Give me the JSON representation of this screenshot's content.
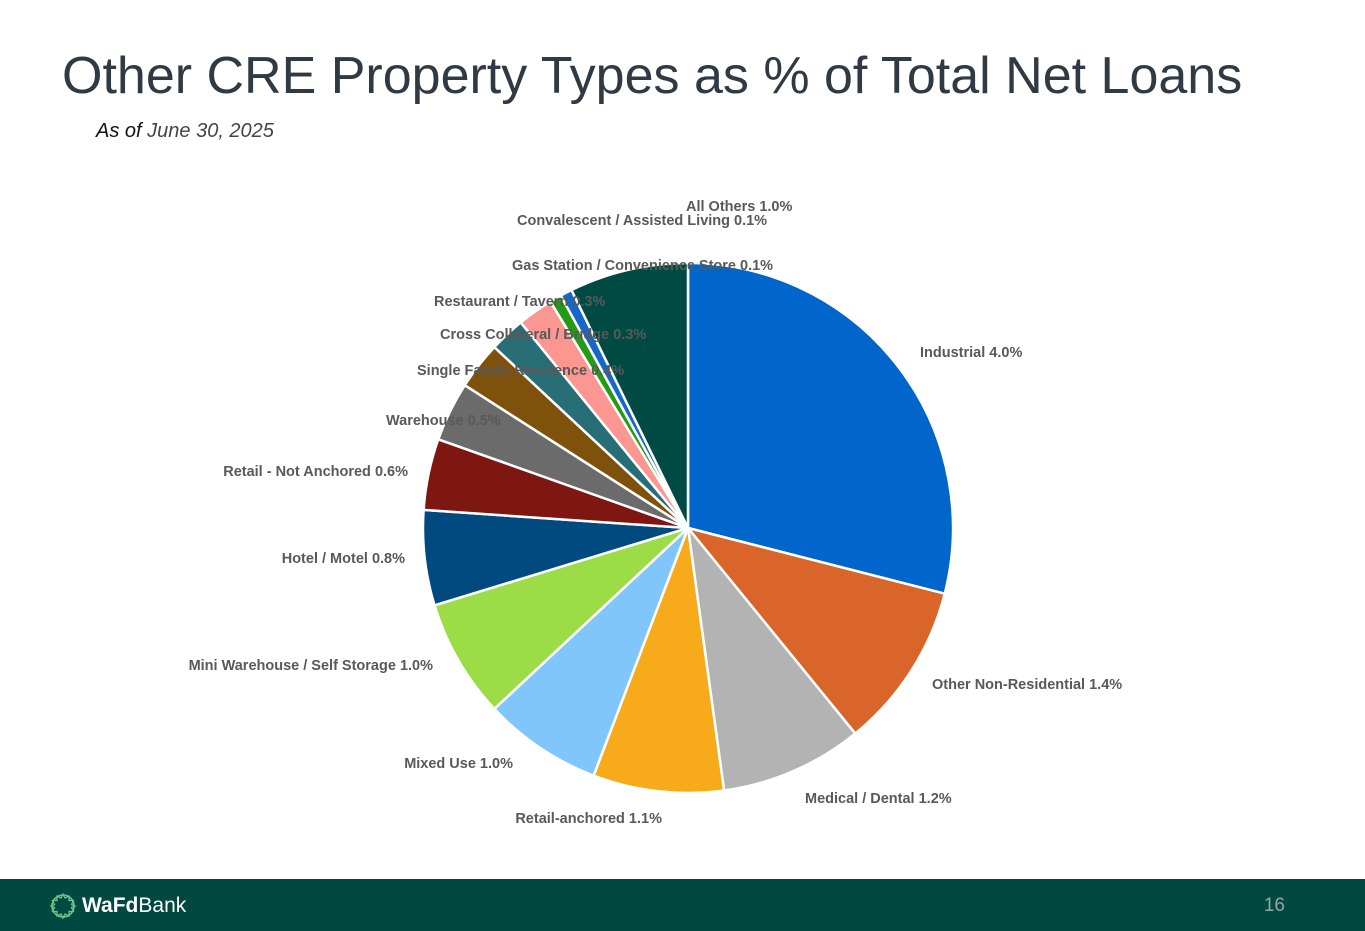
{
  "header": {
    "title": "Other CRE Property Types as % of Total Net Loans",
    "subtitle_prefix": "As of",
    "subtitle_date": "June 30, 2025"
  },
  "footer": {
    "logo_bold": "WaFd",
    "logo_light": "Bank",
    "page_number": "16"
  },
  "chart_data": {
    "type": "pie",
    "title": "Other CRE Property Types as % of Total Net Loans",
    "subtitle": "As of June 30, 2025",
    "start": "12 o'clock",
    "direction": "clockwise",
    "slices": [
      {
        "label": "Industrial",
        "value": 4.0,
        "value_label": "4.0%",
        "color": "#0066cc"
      },
      {
        "label": "Other Non-Residential",
        "value": 1.4,
        "value_label": "1.4%",
        "color": "#d9652b"
      },
      {
        "label": "Medical / Dental",
        "value": 1.2,
        "value_label": "1.2%",
        "color": "#b3b3b3"
      },
      {
        "label": "Retail-anchored",
        "value": 1.1,
        "value_label": "1.1%",
        "color": "#f7ab1b"
      },
      {
        "label": "Mixed Use",
        "value": 1.0,
        "value_label": "1.0%",
        "color": "#80c6fb"
      },
      {
        "label": "Mini Warehouse / Self Storage",
        "value": 1.0,
        "value_label": "1.0%",
        "color": "#9cdc47"
      },
      {
        "label": "Hotel / Motel",
        "value": 0.8,
        "value_label": "0.8%",
        "color": "#004a80"
      },
      {
        "label": "Retail - Not Anchored",
        "value": 0.6,
        "value_label": "0.6%",
        "color": "#7e1611"
      },
      {
        "label": "Warehouse",
        "value": 0.5,
        "value_label": "0.5%",
        "color": "#6b6b6b"
      },
      {
        "label": "Single Family Residence",
        "value": 0.4,
        "value_label": "0.4%",
        "color": "#7f520b"
      },
      {
        "label": "Cross Collateral / Bridge",
        "value": 0.3,
        "value_label": "0.3%",
        "color": "#276e77"
      },
      {
        "label": "Restaurant / Tavern",
        "value": 0.3,
        "value_label": "0.3%",
        "color": "#fb9691"
      },
      {
        "label": "Gas Station / Convenience Store",
        "value": 0.1,
        "value_label": "0.1%",
        "color": "#269917"
      },
      {
        "label": "Convalescent / Assisted Living",
        "value": 0.1,
        "value_label": "0.1%",
        "color": "#1667c8"
      },
      {
        "label": "All Others",
        "value": 1.0,
        "value_label": "1.0%",
        "color": "#004a44"
      }
    ]
  }
}
